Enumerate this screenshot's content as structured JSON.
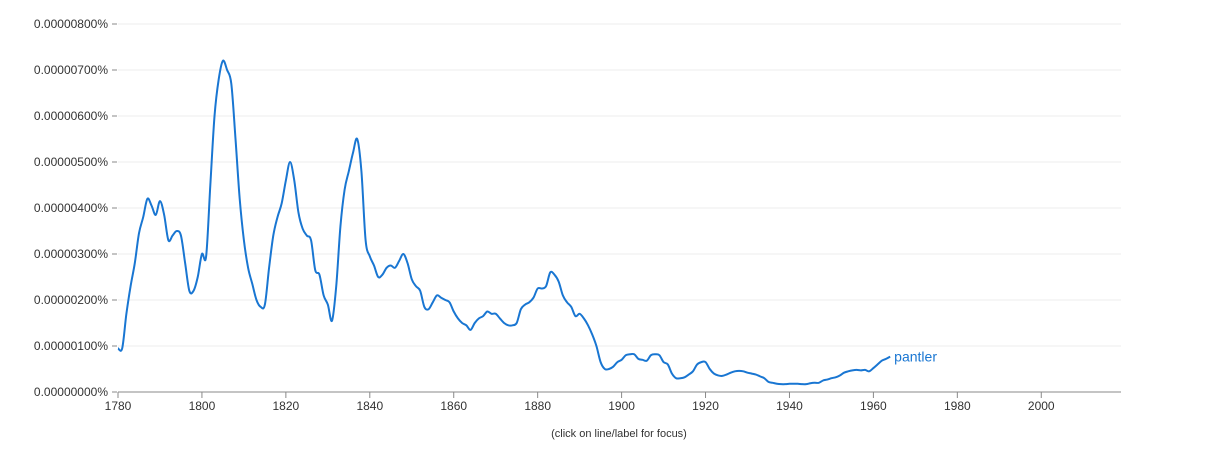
{
  "chart_data": {
    "type": "line",
    "title": "",
    "xlabel": "",
    "ylabel": "",
    "xlim": [
      1780,
      2019
    ],
    "ylim": [
      0,
      8e-08
    ],
    "x_ticks": [
      1780,
      1800,
      1820,
      1840,
      1860,
      1880,
      1900,
      1920,
      1940,
      1960,
      1980,
      2000
    ],
    "y_ticks": [
      0,
      1e-08,
      2e-08,
      3e-08,
      4e-08,
      5e-08,
      6e-08,
      7e-08,
      8e-08
    ],
    "y_tick_labels": [
      "0.00000000%",
      "0.00000100%",
      "0.00000200%",
      "0.00000300%",
      "0.00000400%",
      "0.00000500%",
      "0.00000600%",
      "0.00000700%",
      "0.00000800%"
    ],
    "grid": true,
    "series": [
      {
        "name": "pantler",
        "color": "#1976D2",
        "points": [
          [
            1780,
            9.5e-09
          ],
          [
            1781,
            9.5e-09
          ],
          [
            1782,
            1.7e-08
          ],
          [
            1783,
            2.3e-08
          ],
          [
            1784,
            2.8e-08
          ],
          [
            1785,
            3.45e-08
          ],
          [
            1786,
            3.8e-08
          ],
          [
            1787,
            4.2e-08
          ],
          [
            1788,
            4.05e-08
          ],
          [
            1789,
            3.85e-08
          ],
          [
            1790,
            4.15e-08
          ],
          [
            1791,
            3.85e-08
          ],
          [
            1792,
            3.3e-08
          ],
          [
            1793,
            3.4e-08
          ],
          [
            1794,
            3.5e-08
          ],
          [
            1795,
            3.4e-08
          ],
          [
            1796,
            2.8e-08
          ],
          [
            1797,
            2.2e-08
          ],
          [
            1798,
            2.2e-08
          ],
          [
            1799,
            2.5e-08
          ],
          [
            1800,
            3e-08
          ],
          [
            1801,
            2.95e-08
          ],
          [
            1802,
            4.5e-08
          ],
          [
            1803,
            6e-08
          ],
          [
            1804,
            6.8e-08
          ],
          [
            1805,
            7.2e-08
          ],
          [
            1806,
            7e-08
          ],
          [
            1807,
            6.7e-08
          ],
          [
            1808,
            5.5e-08
          ],
          [
            1809,
            4.2e-08
          ],
          [
            1810,
            3.3e-08
          ],
          [
            1811,
            2.7e-08
          ],
          [
            1812,
            2.35e-08
          ],
          [
            1813,
            2e-08
          ],
          [
            1814,
            1.85e-08
          ],
          [
            1815,
            1.9e-08
          ],
          [
            1816,
            2.7e-08
          ],
          [
            1817,
            3.4e-08
          ],
          [
            1818,
            3.8e-08
          ],
          [
            1819,
            4.1e-08
          ],
          [
            1820,
            4.6e-08
          ],
          [
            1821,
            5e-08
          ],
          [
            1822,
            4.6e-08
          ],
          [
            1823,
            3.9e-08
          ],
          [
            1824,
            3.55e-08
          ],
          [
            1825,
            3.4e-08
          ],
          [
            1826,
            3.3e-08
          ],
          [
            1827,
            2.65e-08
          ],
          [
            1828,
            2.55e-08
          ],
          [
            1829,
            2.1e-08
          ],
          [
            1830,
            1.9e-08
          ],
          [
            1831,
            1.55e-08
          ],
          [
            1832,
            2.3e-08
          ],
          [
            1833,
            3.6e-08
          ],
          [
            1834,
            4.4e-08
          ],
          [
            1835,
            4.8e-08
          ],
          [
            1836,
            5.2e-08
          ],
          [
            1837,
            5.5e-08
          ],
          [
            1838,
            4.8e-08
          ],
          [
            1839,
            3.3e-08
          ],
          [
            1840,
            2.95e-08
          ],
          [
            1841,
            2.75e-08
          ],
          [
            1842,
            2.5e-08
          ],
          [
            1843,
            2.55e-08
          ],
          [
            1844,
            2.7e-08
          ],
          [
            1845,
            2.75e-08
          ],
          [
            1846,
            2.7e-08
          ],
          [
            1847,
            2.85e-08
          ],
          [
            1848,
            3e-08
          ],
          [
            1849,
            2.8e-08
          ],
          [
            1850,
            2.45e-08
          ],
          [
            1851,
            2.3e-08
          ],
          [
            1852,
            2.2e-08
          ],
          [
            1853,
            1.85e-08
          ],
          [
            1854,
            1.8e-08
          ],
          [
            1855,
            1.95e-08
          ],
          [
            1856,
            2.1e-08
          ],
          [
            1857,
            2.05e-08
          ],
          [
            1858,
            2e-08
          ],
          [
            1859,
            1.95e-08
          ],
          [
            1860,
            1.75e-08
          ],
          [
            1861,
            1.6e-08
          ],
          [
            1862,
            1.5e-08
          ],
          [
            1863,
            1.45e-08
          ],
          [
            1864,
            1.35e-08
          ],
          [
            1865,
            1.5e-08
          ],
          [
            1866,
            1.6e-08
          ],
          [
            1867,
            1.65e-08
          ],
          [
            1868,
            1.75e-08
          ],
          [
            1869,
            1.7e-08
          ],
          [
            1870,
            1.7e-08
          ],
          [
            1871,
            1.6e-08
          ],
          [
            1872,
            1.5e-08
          ],
          [
            1873,
            1.45e-08
          ],
          [
            1874,
            1.45e-08
          ],
          [
            1875,
            1.5e-08
          ],
          [
            1876,
            1.8e-08
          ],
          [
            1877,
            1.9e-08
          ],
          [
            1878,
            1.95e-08
          ],
          [
            1879,
            2.05e-08
          ],
          [
            1880,
            2.25e-08
          ],
          [
            1881,
            2.25e-08
          ],
          [
            1882,
            2.3e-08
          ],
          [
            1883,
            2.6e-08
          ],
          [
            1884,
            2.55e-08
          ],
          [
            1885,
            2.4e-08
          ],
          [
            1886,
            2.1e-08
          ],
          [
            1887,
            1.95e-08
          ],
          [
            1888,
            1.85e-08
          ],
          [
            1889,
            1.65e-08
          ],
          [
            1890,
            1.7e-08
          ],
          [
            1891,
            1.6e-08
          ],
          [
            1892,
            1.45e-08
          ],
          [
            1893,
            1.25e-08
          ],
          [
            1894,
            1e-08
          ],
          [
            1895,
            6.5e-09
          ],
          [
            1896,
            5e-09
          ],
          [
            1897,
            5e-09
          ],
          [
            1898,
            5.5e-09
          ],
          [
            1899,
            6.5e-09
          ],
          [
            1900,
            7e-09
          ],
          [
            1901,
            8e-09
          ],
          [
            1902,
            8.2e-09
          ],
          [
            1903,
            8.2e-09
          ],
          [
            1904,
            7.2e-09
          ],
          [
            1905,
            7e-09
          ],
          [
            1906,
            6.8e-09
          ],
          [
            1907,
            8e-09
          ],
          [
            1908,
            8.2e-09
          ],
          [
            1909,
            8e-09
          ],
          [
            1910,
            6.5e-09
          ],
          [
            1911,
            6e-09
          ],
          [
            1912,
            4e-09
          ],
          [
            1913,
            3e-09
          ],
          [
            1914,
            3e-09
          ],
          [
            1915,
            3.2e-09
          ],
          [
            1916,
            3.8e-09
          ],
          [
            1917,
            4.5e-09
          ],
          [
            1918,
            6e-09
          ],
          [
            1919,
            6.5e-09
          ],
          [
            1920,
            6.5e-09
          ],
          [
            1921,
            5e-09
          ],
          [
            1922,
            4e-09
          ],
          [
            1923,
            3.6e-09
          ],
          [
            1924,
            3.5e-09
          ],
          [
            1925,
            3.8e-09
          ],
          [
            1926,
            4.2e-09
          ],
          [
            1927,
            4.5e-09
          ],
          [
            1928,
            4.6e-09
          ],
          [
            1929,
            4.5e-09
          ],
          [
            1930,
            4.2e-09
          ],
          [
            1931,
            4e-09
          ],
          [
            1932,
            3.8e-09
          ],
          [
            1933,
            3.4e-09
          ],
          [
            1934,
            3e-09
          ],
          [
            1935,
            2.2e-09
          ],
          [
            1936,
            2e-09
          ],
          [
            1937,
            1.8e-09
          ],
          [
            1938,
            1.7e-09
          ],
          [
            1939,
            1.7e-09
          ],
          [
            1940,
            1.8e-09
          ],
          [
            1941,
            1.8e-09
          ],
          [
            1942,
            1.8e-09
          ],
          [
            1943,
            1.7e-09
          ],
          [
            1944,
            1.7e-09
          ],
          [
            1945,
            1.9e-09
          ],
          [
            1946,
            2e-09
          ],
          [
            1947,
            2e-09
          ],
          [
            1948,
            2.5e-09
          ],
          [
            1949,
            2.7e-09
          ],
          [
            1950,
            3e-09
          ],
          [
            1951,
            3.2e-09
          ],
          [
            1952,
            3.6e-09
          ],
          [
            1953,
            4.2e-09
          ],
          [
            1954,
            4.5e-09
          ],
          [
            1955,
            4.7e-09
          ],
          [
            1956,
            4.8e-09
          ],
          [
            1957,
            4.7e-09
          ],
          [
            1958,
            4.8e-09
          ],
          [
            1959,
            4.5e-09
          ],
          [
            1960,
            5.2e-09
          ],
          [
            1961,
            6e-09
          ],
          [
            1962,
            6.8e-09
          ],
          [
            1963,
            7.2e-09
          ],
          [
            1964,
            7.7e-09
          ]
        ]
      }
    ],
    "footnote": "(click on line/label for focus)"
  }
}
